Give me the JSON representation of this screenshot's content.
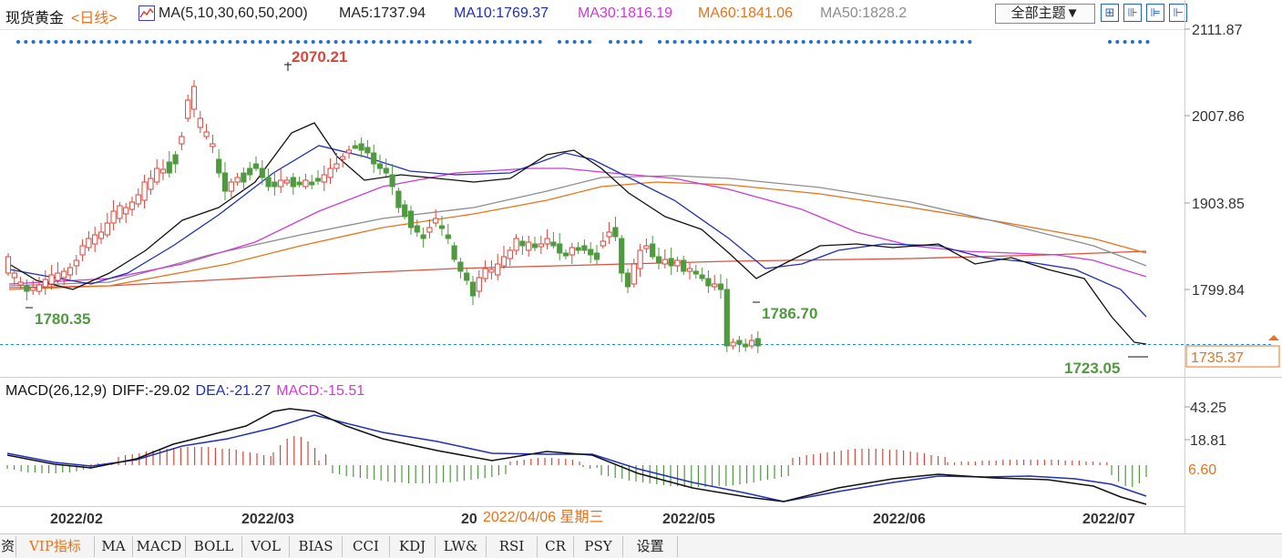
{
  "header": {
    "title": "现货黄金",
    "period": "<日线>",
    "ma_def": "MA(5,10,30,60,50,200)",
    "ma5": "MA5:1737.94",
    "ma10": "MA10:1769.37",
    "ma30": "MA30:1816.19",
    "ma60": "MA60:1841.06",
    "ma50": "MA50:1828.2",
    "theme_button": "全部主题▼",
    "tool_icons": [
      "⊞",
      "⊪",
      "⊫",
      "⊩"
    ]
  },
  "price_axis": {
    "ticks": [
      "2111.87",
      "2007.86",
      "1903.85",
      "1799.84"
    ],
    "current": "1735.37"
  },
  "annotations": {
    "high": "2070.21",
    "low1": "1780.35",
    "low2": "1786.70",
    "low3": "1723.05"
  },
  "macd": {
    "name": "MACD(26,12,9)",
    "diff": "DIFF:-29.02",
    "dea": "DEA:-21.27",
    "macd": "MACD:-15.51",
    "ticks": [
      "43.25",
      "18.81",
      "6.60"
    ]
  },
  "time_axis": {
    "labels": [
      "2022/02",
      "2022/03",
      "20",
      "2022/05",
      "2022/06",
      "2022/07"
    ],
    "tooltip": "2022/04/06 星期三"
  },
  "tabs": [
    "资",
    "VIP指标",
    "MA",
    "MACD",
    "BOLL",
    "VOL",
    "BIAS",
    "CCI",
    "KDJ",
    "LW&",
    "RSI",
    "CR",
    "PSY",
    "设置"
  ],
  "colors": {
    "up": "#d9453a",
    "down": "#4f9a3f",
    "ma5": "#111111",
    "ma10": "#1f2fb8",
    "ma30": "#d03ad6",
    "ma60": "#e8731a",
    "ma50": "#8d8d8d",
    "ma200": "#e0503e",
    "dots": "#1e6fd9",
    "accent": "#e8731a"
  }
}
